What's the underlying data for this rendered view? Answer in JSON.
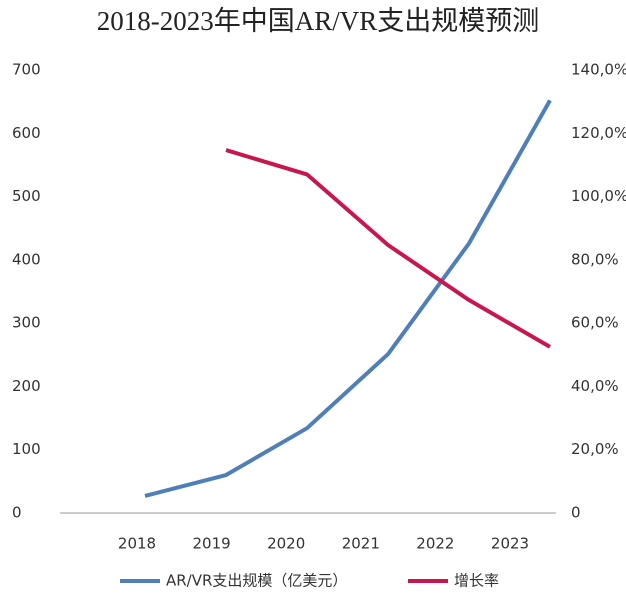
{
  "chart_data": {
    "type": "line",
    "title": "2018-2023年中国AR/VR支出规模预测",
    "categories": [
      "2018",
      "2019",
      "2020",
      "2021",
      "2022",
      "2023"
    ],
    "series": [
      {
        "name": "AR/VR支出规模（亿美元）",
        "color": "#4f7fb8",
        "values": [
          27,
          60,
          134,
          251,
          426,
          652
        ]
      },
      {
        "name": "增长率",
        "color": "#c8174f",
        "axis": "y2",
        "values": [
          null,
          114.7,
          107,
          84.7,
          67.3,
          52.5
        ]
      }
    ],
    "ylim": [
      0,
      700
    ],
    "yticks": [
      0,
      100,
      200,
      300,
      400,
      500,
      600,
      700
    ],
    "y2lim": [
      0,
      140
    ],
    "y2ticks": [
      0,
      {
        "value": 20,
        "label": "20,0%"
      },
      {
        "value": 40,
        "label": "40,0%"
      },
      {
        "value": 60,
        "label": "60,0%"
      },
      {
        "value": 80,
        "label": "80,0%"
      },
      {
        "value": 100,
        "label": "100,0%"
      },
      {
        "value": 120,
        "label": "120,0%"
      },
      {
        "value": 140,
        "label": "140,0%"
      }
    ],
    "grid": false,
    "legend": "bottom"
  }
}
